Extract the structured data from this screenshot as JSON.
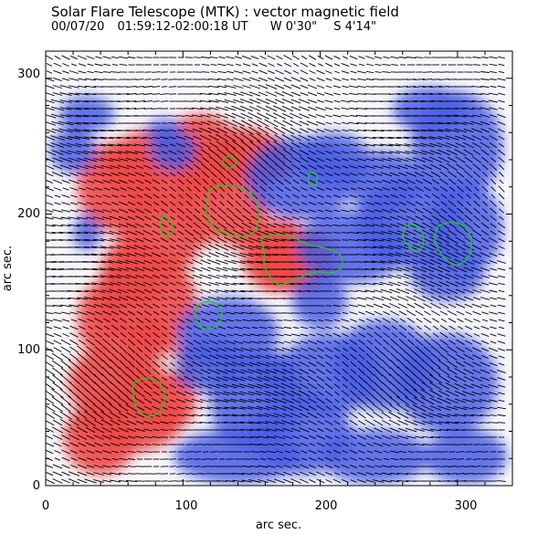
{
  "header": {
    "title": "Solar Flare Telescope (MTK) : vector magnetic field",
    "date": "00/07/20",
    "time_range": "01:59:12-02:00:18 UT",
    "lon": "W 0'30\"",
    "lat": "S 4'14\""
  },
  "axes": {
    "xlabel": "arc sec.",
    "ylabel": "arc sec.",
    "xlim": [
      0,
      340
    ],
    "ylim": [
      0,
      320
    ],
    "xticks": [
      "0",
      "100",
      "200",
      "300"
    ],
    "yticks": [
      "0",
      "100",
      "200",
      "300"
    ]
  },
  "colors": {
    "positive_polarity": "#f04848",
    "negative_polarity": "#4a5ee8",
    "contours": "#22cc22",
    "vectors": "#000000"
  }
}
